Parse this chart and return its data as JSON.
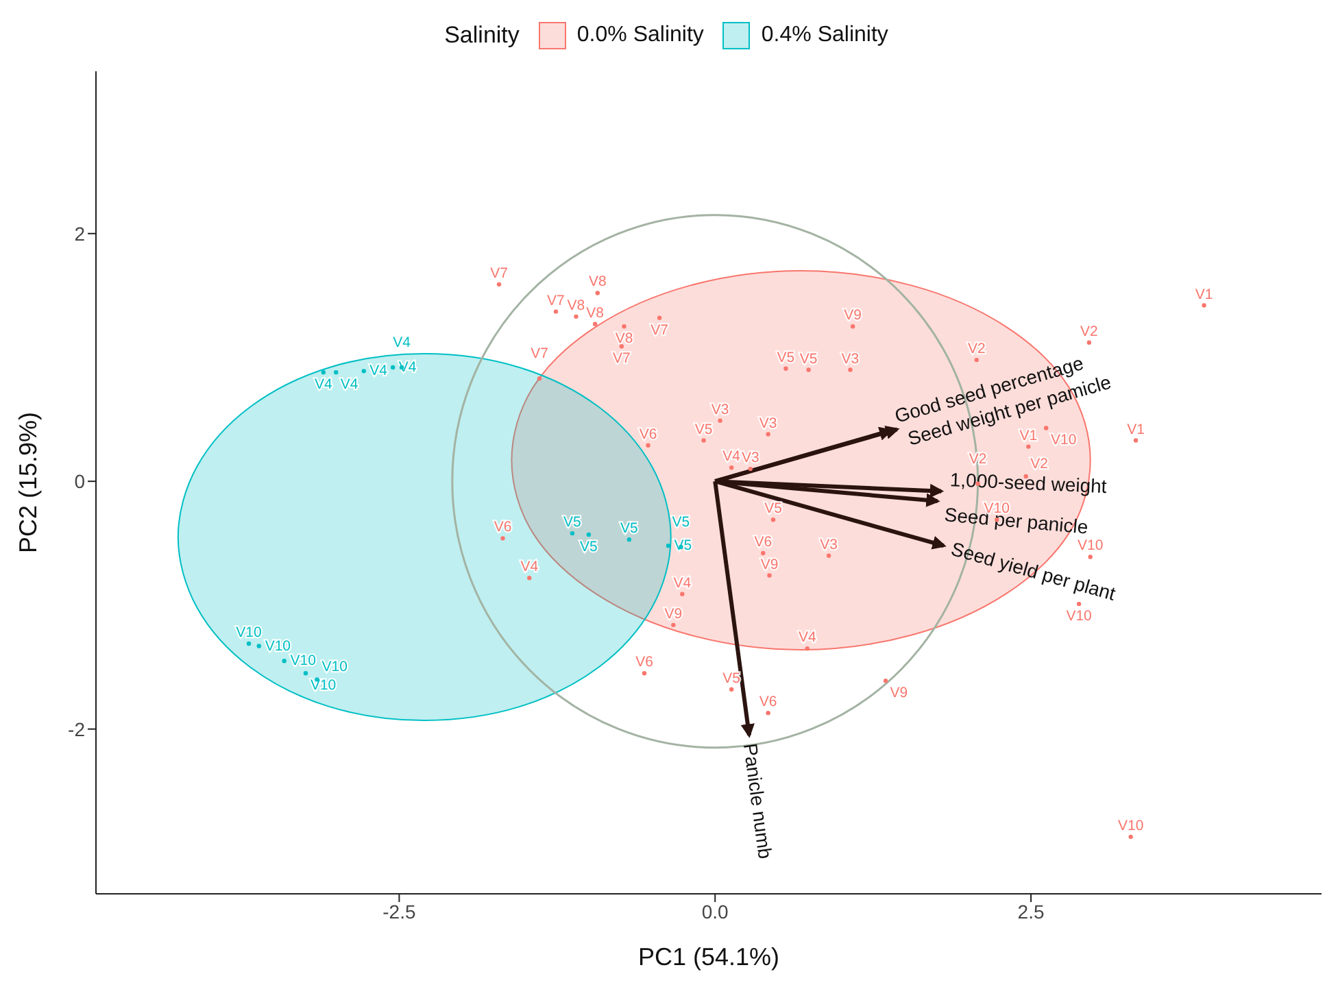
{
  "chart_data": {
    "type": "scatter",
    "xlabel": "PC1 (54.1%)",
    "ylabel": "PC2 (15.9%)",
    "legend_title": "Salinity",
    "legend": "top",
    "xlim": [
      -4.9,
      4.8
    ],
    "ylim": [
      -3.33,
      3.31
    ],
    "xticks": [
      -2.5,
      {
        "value": 0,
        "label": "0.0"
      },
      2.5
    ],
    "yticks": [
      -2,
      0,
      2
    ],
    "series": [
      {
        "type": "area",
        "color": "#f8766d",
        "x": [
          2.97,
          2.8,
          2.3,
          1.56,
          0.68,
          -0.2,
          -0.94,
          -1.44,
          -1.61,
          -1.44,
          -0.94,
          -0.2,
          0.68,
          1.56,
          2.3,
          2.8
        ],
        "values": [
          0.17,
          0.76,
          1.25,
          1.58,
          1.7,
          1.58,
          1.25,
          0.76,
          0.17,
          -0.42,
          -0.91,
          -1.24,
          -1.36,
          -1.24,
          -0.91,
          -0.42
        ]
      },
      {
        "type": "area",
        "color": "#00bfc4",
        "x": [
          -0.35,
          -0.5,
          -0.92,
          -1.55,
          -2.3,
          -3.05,
          -3.68,
          -4.1,
          -4.25,
          -4.1,
          -3.68,
          -3.05,
          -2.3,
          -1.55,
          -0.92,
          -0.5
        ],
        "values": [
          -0.45,
          0.12,
          0.6,
          0.92,
          1.03,
          0.92,
          0.6,
          0.12,
          -0.45,
          -1.02,
          -1.5,
          -1.82,
          -1.93,
          -1.82,
          -1.5,
          -1.02
        ]
      },
      {
        "name": "0.0% Salinity",
        "color": "#f8766d",
        "marker": "circle",
        "x": [
          -1.71,
          -0.93,
          -1.26,
          -1.1,
          -0.95,
          -0.72,
          -0.74,
          -0.44,
          1.09,
          0.56,
          0.74,
          1.07,
          -1.39,
          0.04,
          -0.09,
          0.42,
          -0.53,
          0.13,
          0.28,
          0.46,
          0.38,
          0.43,
          0.9,
          -0.26,
          -0.33,
          0.73,
          -0.56,
          1.35,
          0.13,
          0.42,
          -1.68,
          -1.47,
          3.87,
          2.96,
          2.07,
          3.33,
          2.48,
          2.46,
          2.08,
          2.23,
          2.97,
          2.88,
          3.29,
          2.62
        ],
        "values": [
          1.59,
          1.52,
          1.37,
          1.33,
          1.27,
          1.25,
          1.09,
          1.32,
          1.25,
          0.91,
          0.9,
          0.9,
          0.83,
          0.49,
          0.33,
          0.38,
          0.29,
          0.11,
          0.1,
          -0.31,
          -0.58,
          -0.76,
          -0.6,
          -0.91,
          -1.16,
          -1.35,
          -1.55,
          -1.61,
          -1.68,
          -1.87,
          -0.46,
          -0.78,
          1.42,
          1.12,
          0.98,
          0.33,
          0.28,
          0.04,
          -0.02,
          -0.31,
          -0.61,
          -0.99,
          -2.87,
          0.43
        ],
        "value_labels": [
          "V7",
          "V8",
          "V7",
          "V8",
          "V8",
          "V8",
          "V7",
          "V7",
          "V9",
          "V5",
          "V5",
          "V3",
          "V7",
          "V3",
          "V5",
          "V3",
          "V6",
          "V4",
          "V3",
          "V5",
          "V6",
          "V9",
          "V3",
          "V4",
          "V9",
          "V4",
          "V6",
          "V9",
          "V5",
          "V6",
          "V6",
          "V4",
          "V1",
          "V2",
          "V2",
          "V1",
          "V1",
          "V2",
          "V2",
          "V10",
          "V10",
          "V10",
          "V10",
          "V10"
        ]
      },
      {
        "name": "0.4% Salinity",
        "color": "#00bfc4",
        "marker": "circle",
        "x": [
          -3.1,
          -3.0,
          -2.78,
          -2.55,
          -2.48,
          -3.69,
          -3.61,
          -3.41,
          -3.24,
          -3.15,
          -1.13,
          -1.0,
          -0.68,
          -0.37,
          -0.27
        ],
        "values": [
          0.88,
          0.88,
          0.89,
          0.92,
          0.92,
          -1.31,
          -1.33,
          -1.45,
          -1.55,
          -1.6,
          -0.42,
          -0.43,
          -0.47,
          -0.52,
          -0.53
        ],
        "value_labels": [
          "V4",
          "V4",
          "V4",
          "V4",
          "V4",
          "V10",
          "V10",
          "V10",
          "V10",
          "V10",
          "V5",
          "V5",
          "V5",
          "V5",
          "V5"
        ]
      },
      {
        "type": "line",
        "name": "Good seed percentage",
        "color": "#2b1410",
        "x": [
          0,
          1.39
        ],
        "values": [
          0,
          0.41
        ]
      },
      {
        "type": "line",
        "name": "Seed weight per pamicle",
        "color": "#2b1410",
        "x": [
          0,
          1.44
        ],
        "values": [
          0,
          0.42
        ]
      },
      {
        "type": "line",
        "name": "1,000-seed weight",
        "color": "#2b1410",
        "x": [
          0,
          1.79
        ],
        "values": [
          0,
          -0.08
        ]
      },
      {
        "type": "line",
        "name": "Seed per panicle",
        "color": "#2b1410",
        "x": [
          0,
          1.76
        ],
        "values": [
          0,
          -0.16
        ]
      },
      {
        "type": "line",
        "name": "Seed yield per plant",
        "color": "#2b1410",
        "x": [
          0,
          1.81
        ],
        "values": [
          0,
          -0.52
        ]
      },
      {
        "type": "line",
        "name": "Panicle numb",
        "color": "#2b1410",
        "x": [
          0,
          0.27
        ],
        "values": [
          0,
          -2.05
        ]
      }
    ]
  }
}
